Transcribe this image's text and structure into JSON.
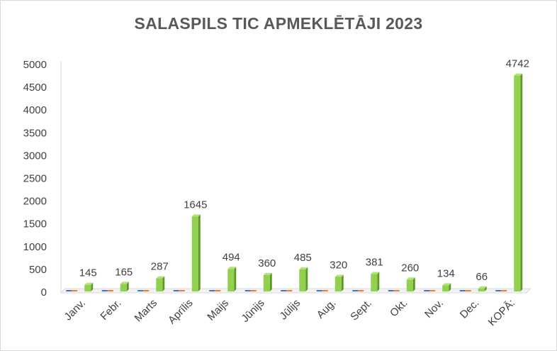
{
  "chart_data": {
    "type": "bar",
    "title": "SALASPILS TIC APMEKLĒTĀJI 2023",
    "categories": [
      "Janv.",
      "Febr.",
      "Marts",
      "Aprīlis",
      "Maijs",
      "Jūnijs",
      "Jūlijs",
      "Aug.",
      "Sept.",
      "Okt.",
      "Nov.",
      "Dec.",
      "KOPĀ:"
    ],
    "series": [
      {
        "values": [
          0,
          0,
          0,
          0,
          0,
          0,
          0,
          0,
          0,
          0,
          0,
          0,
          0
        ],
        "color": "#4472c4"
      },
      {
        "values": [
          0,
          0,
          0,
          0,
          0,
          0,
          0,
          0,
          0,
          0,
          0,
          0,
          0
        ],
        "color": "#ed7d31"
      },
      {
        "values": [
          145,
          165,
          287,
          1645,
          494,
          360,
          485,
          320,
          381,
          260,
          134,
          66,
          4742
        ],
        "color": "#92d050"
      }
    ],
    "yticks": [
      "0",
      "500",
      "1000",
      "1500",
      "2000",
      "2500",
      "3000",
      "3500",
      "4000",
      "4500",
      "5000"
    ],
    "ylim": [
      0,
      5000
    ],
    "grid": false,
    "legend": "none"
  }
}
